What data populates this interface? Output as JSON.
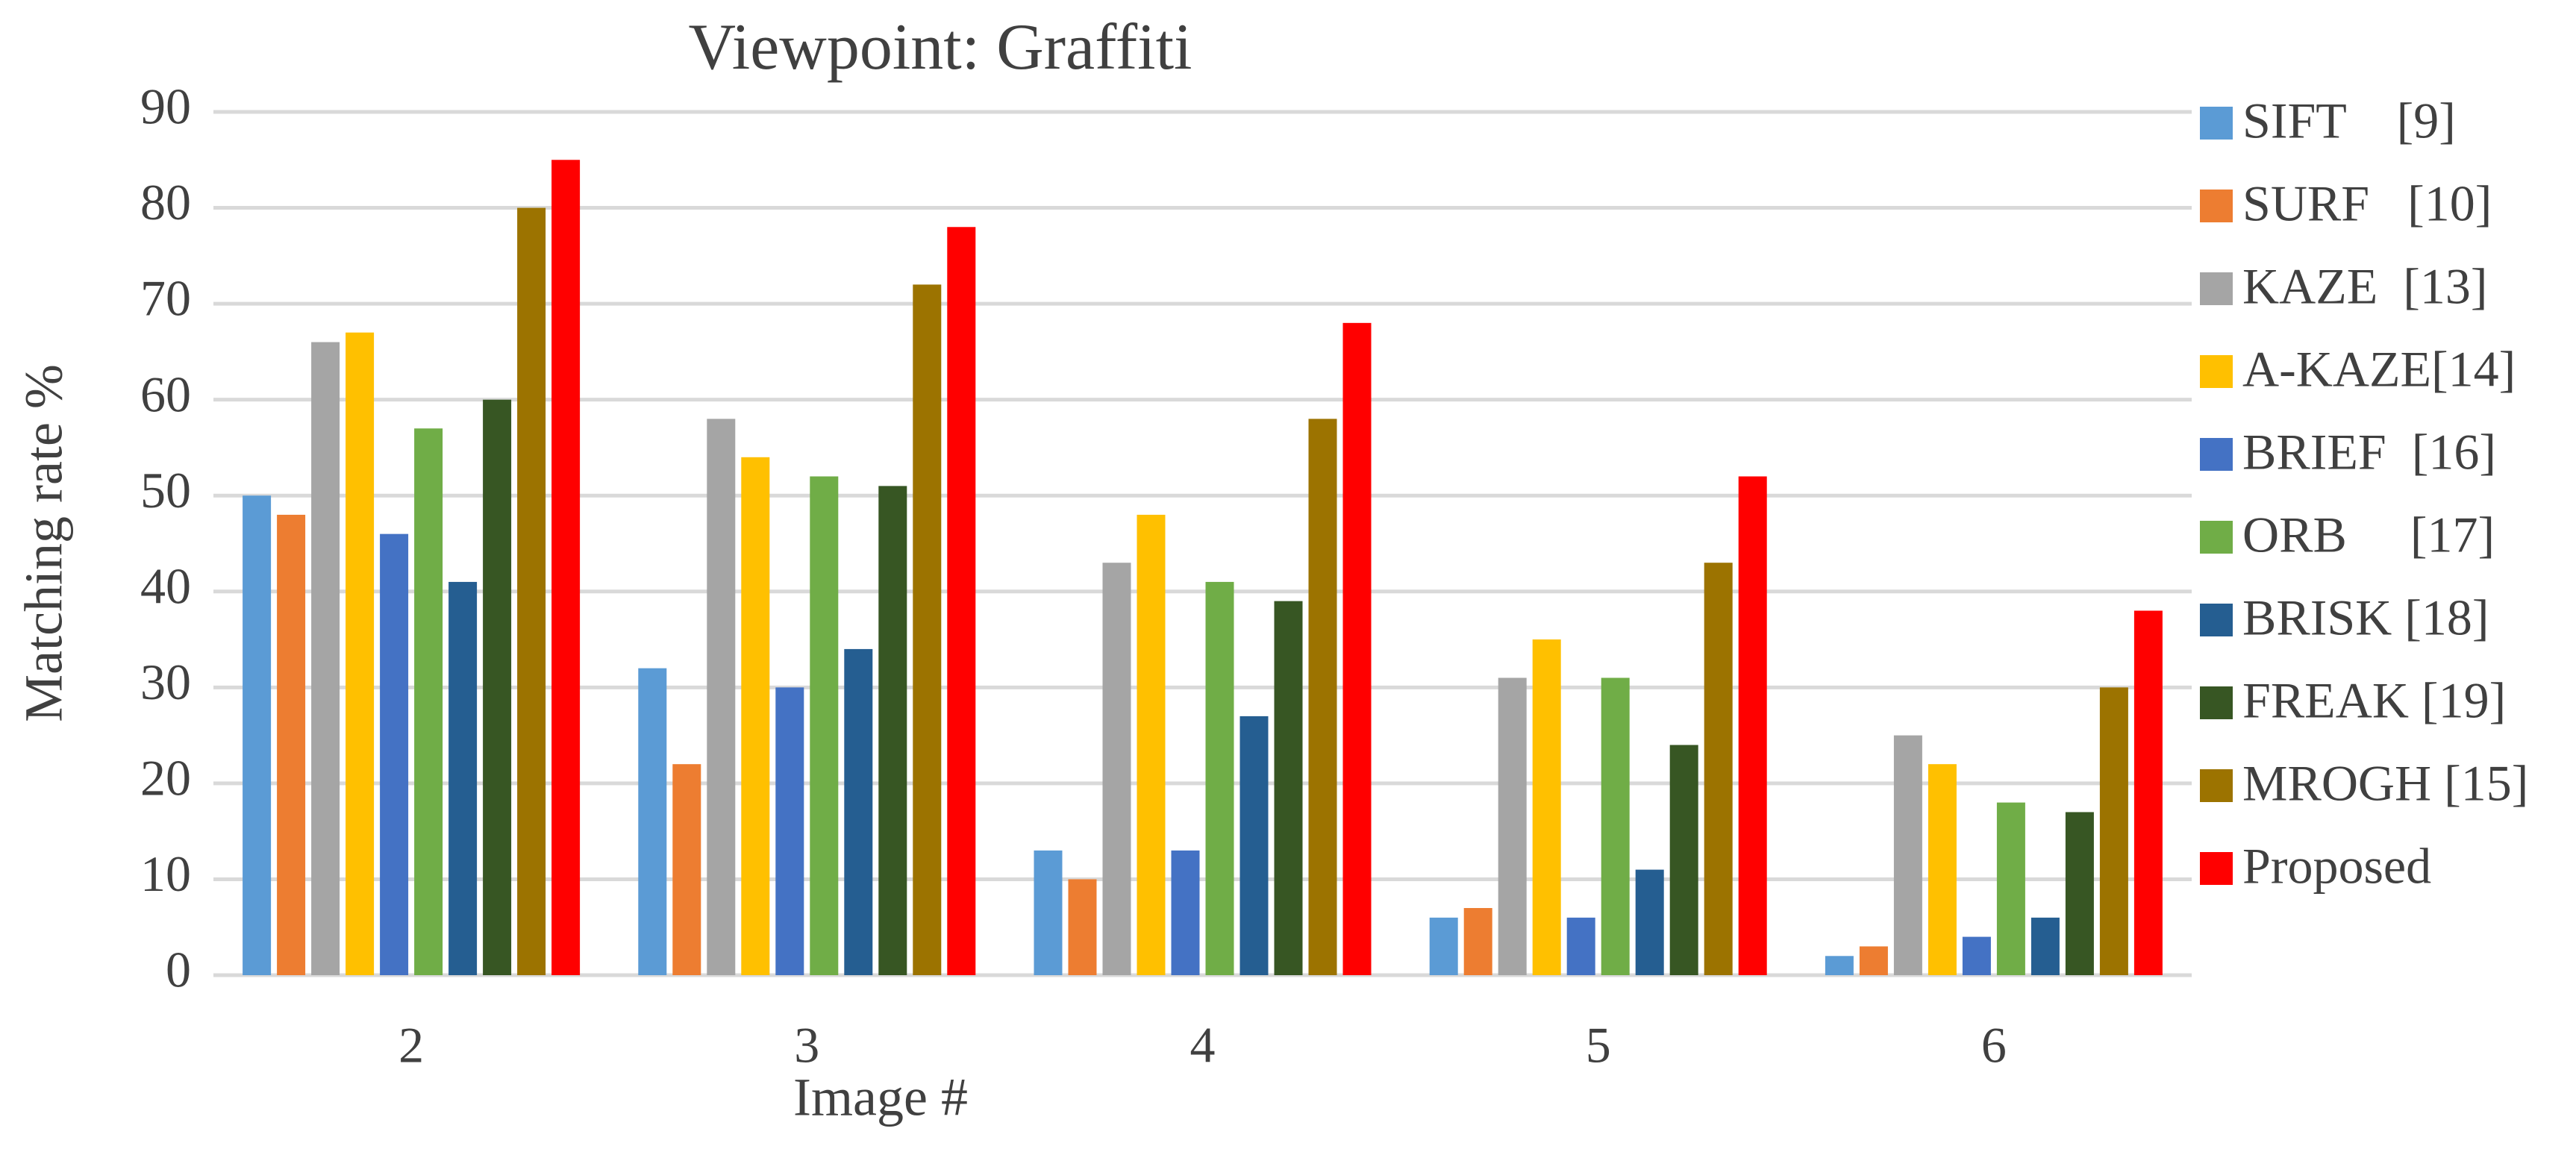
{
  "chart_data": {
    "type": "bar",
    "title": "Viewpoint: Graffiti",
    "x_label": "Image #",
    "y_label": "Matching rate %",
    "categories": [
      "2",
      "3",
      "4",
      "5",
      "6"
    ],
    "series": [
      {
        "name": "SIFT    [9]",
        "color": "#5b9bd5",
        "values": [
          50,
          32,
          13,
          6,
          2
        ]
      },
      {
        "name": "SURF   [10]",
        "color": "#ed7d31",
        "values": [
          48,
          22,
          10,
          7,
          3
        ]
      },
      {
        "name": "KAZE  [13]",
        "color": "#a5a5a5",
        "values": [
          66,
          58,
          43,
          31,
          25
        ]
      },
      {
        "name": "A-KAZE[14]",
        "color": "#ffc000",
        "values": [
          67,
          54,
          48,
          35,
          22
        ]
      },
      {
        "name": "BRIEF  [16]",
        "color": "#4472c4",
        "values": [
          46,
          30,
          13,
          6,
          4
        ]
      },
      {
        "name": "ORB     [17]",
        "color": "#70ad47",
        "values": [
          57,
          52,
          41,
          31,
          18
        ]
      },
      {
        "name": "BRISK [18]",
        "color": "#255e91",
        "values": [
          41,
          34,
          27,
          11,
          6
        ]
      },
      {
        "name": "FREAK [19]",
        "color": "#375623",
        "values": [
          60,
          51,
          39,
          24,
          17
        ]
      },
      {
        "name": "MROGH [15]",
        "color": "#9c7300",
        "values": [
          80,
          72,
          58,
          43,
          30
        ]
      },
      {
        "name": "Proposed",
        "color": "#ff0000",
        "values": [
          85,
          78,
          68,
          52,
          38
        ]
      }
    ],
    "ylim": [
      0,
      90
    ],
    "yticks": [
      0,
      10,
      20,
      30,
      40,
      50,
      60,
      70,
      80,
      90
    ],
    "grid": true,
    "legend": "right"
  }
}
